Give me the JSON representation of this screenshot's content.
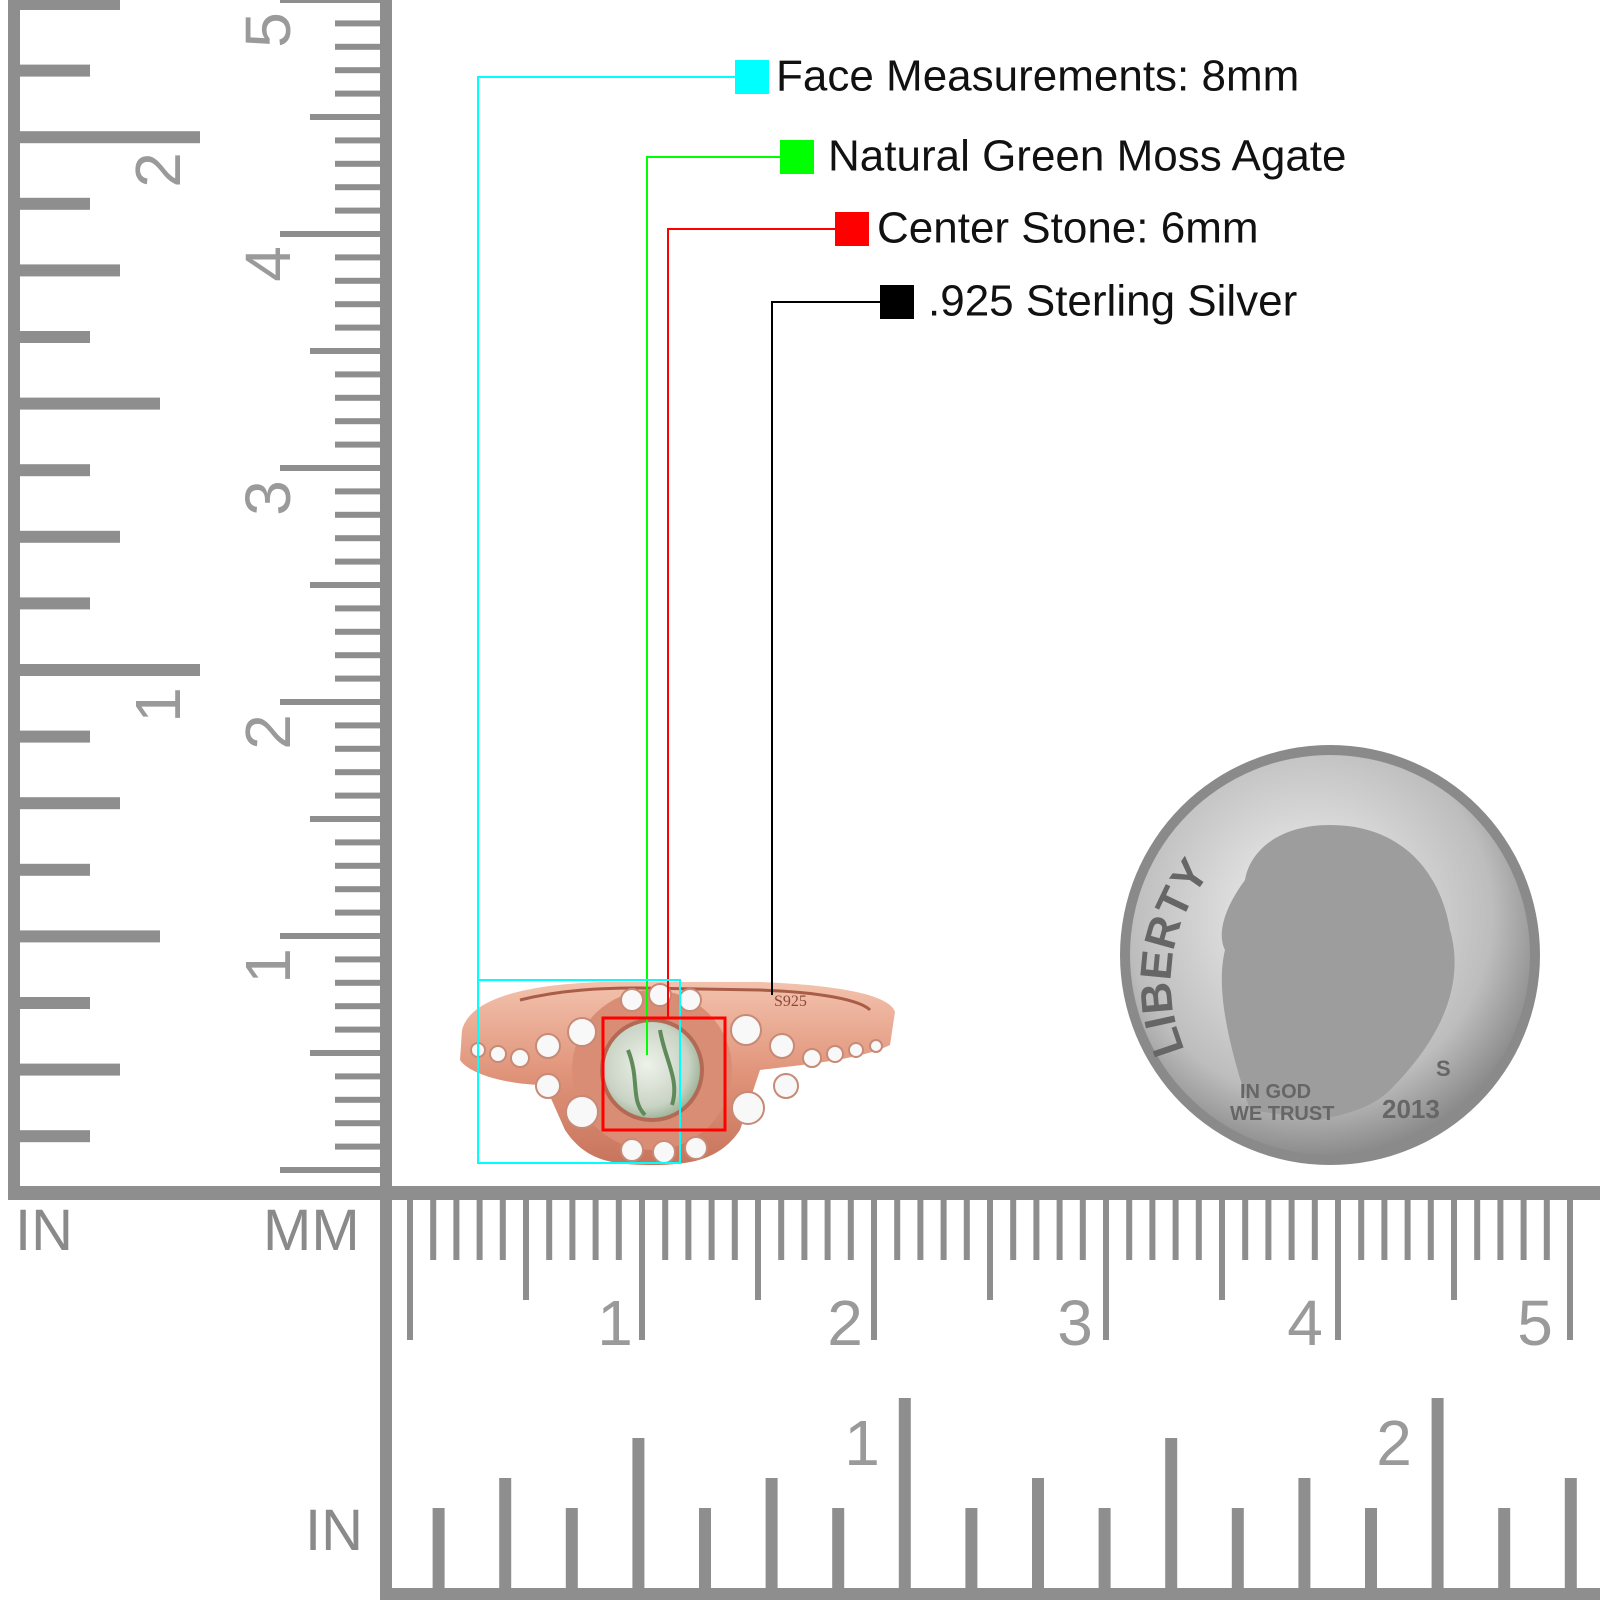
{
  "callouts": [
    {
      "label": "Face Measurements: 8mm",
      "color": "#00ffff"
    },
    {
      "label": "Natural Green Moss Agate",
      "color": "#00ff00"
    },
    {
      "label": "Center Stone: 6mm",
      "color": "#ff0000"
    },
    {
      "label": ".925 Sterling Silver",
      "color": "#000000"
    }
  ],
  "ring": {
    "stamp": "S925"
  },
  "coin": {
    "legend": "LIBERTY",
    "motto_line1": "IN GOD",
    "motto_line2": "WE TRUST",
    "year": "2013",
    "mint_mark": "S"
  },
  "left_ruler": {
    "inch_numbers": [
      "2",
      "1"
    ],
    "cm_numbers": [
      "5",
      "4",
      "3",
      "2",
      "1"
    ],
    "unit_left": "IN",
    "unit_right": "MM"
  },
  "bottom_ruler": {
    "cm_numbers": [
      "1",
      "2",
      "3",
      "4",
      "5"
    ],
    "inch_numbers": [
      "1",
      "2"
    ],
    "unit": "IN"
  }
}
